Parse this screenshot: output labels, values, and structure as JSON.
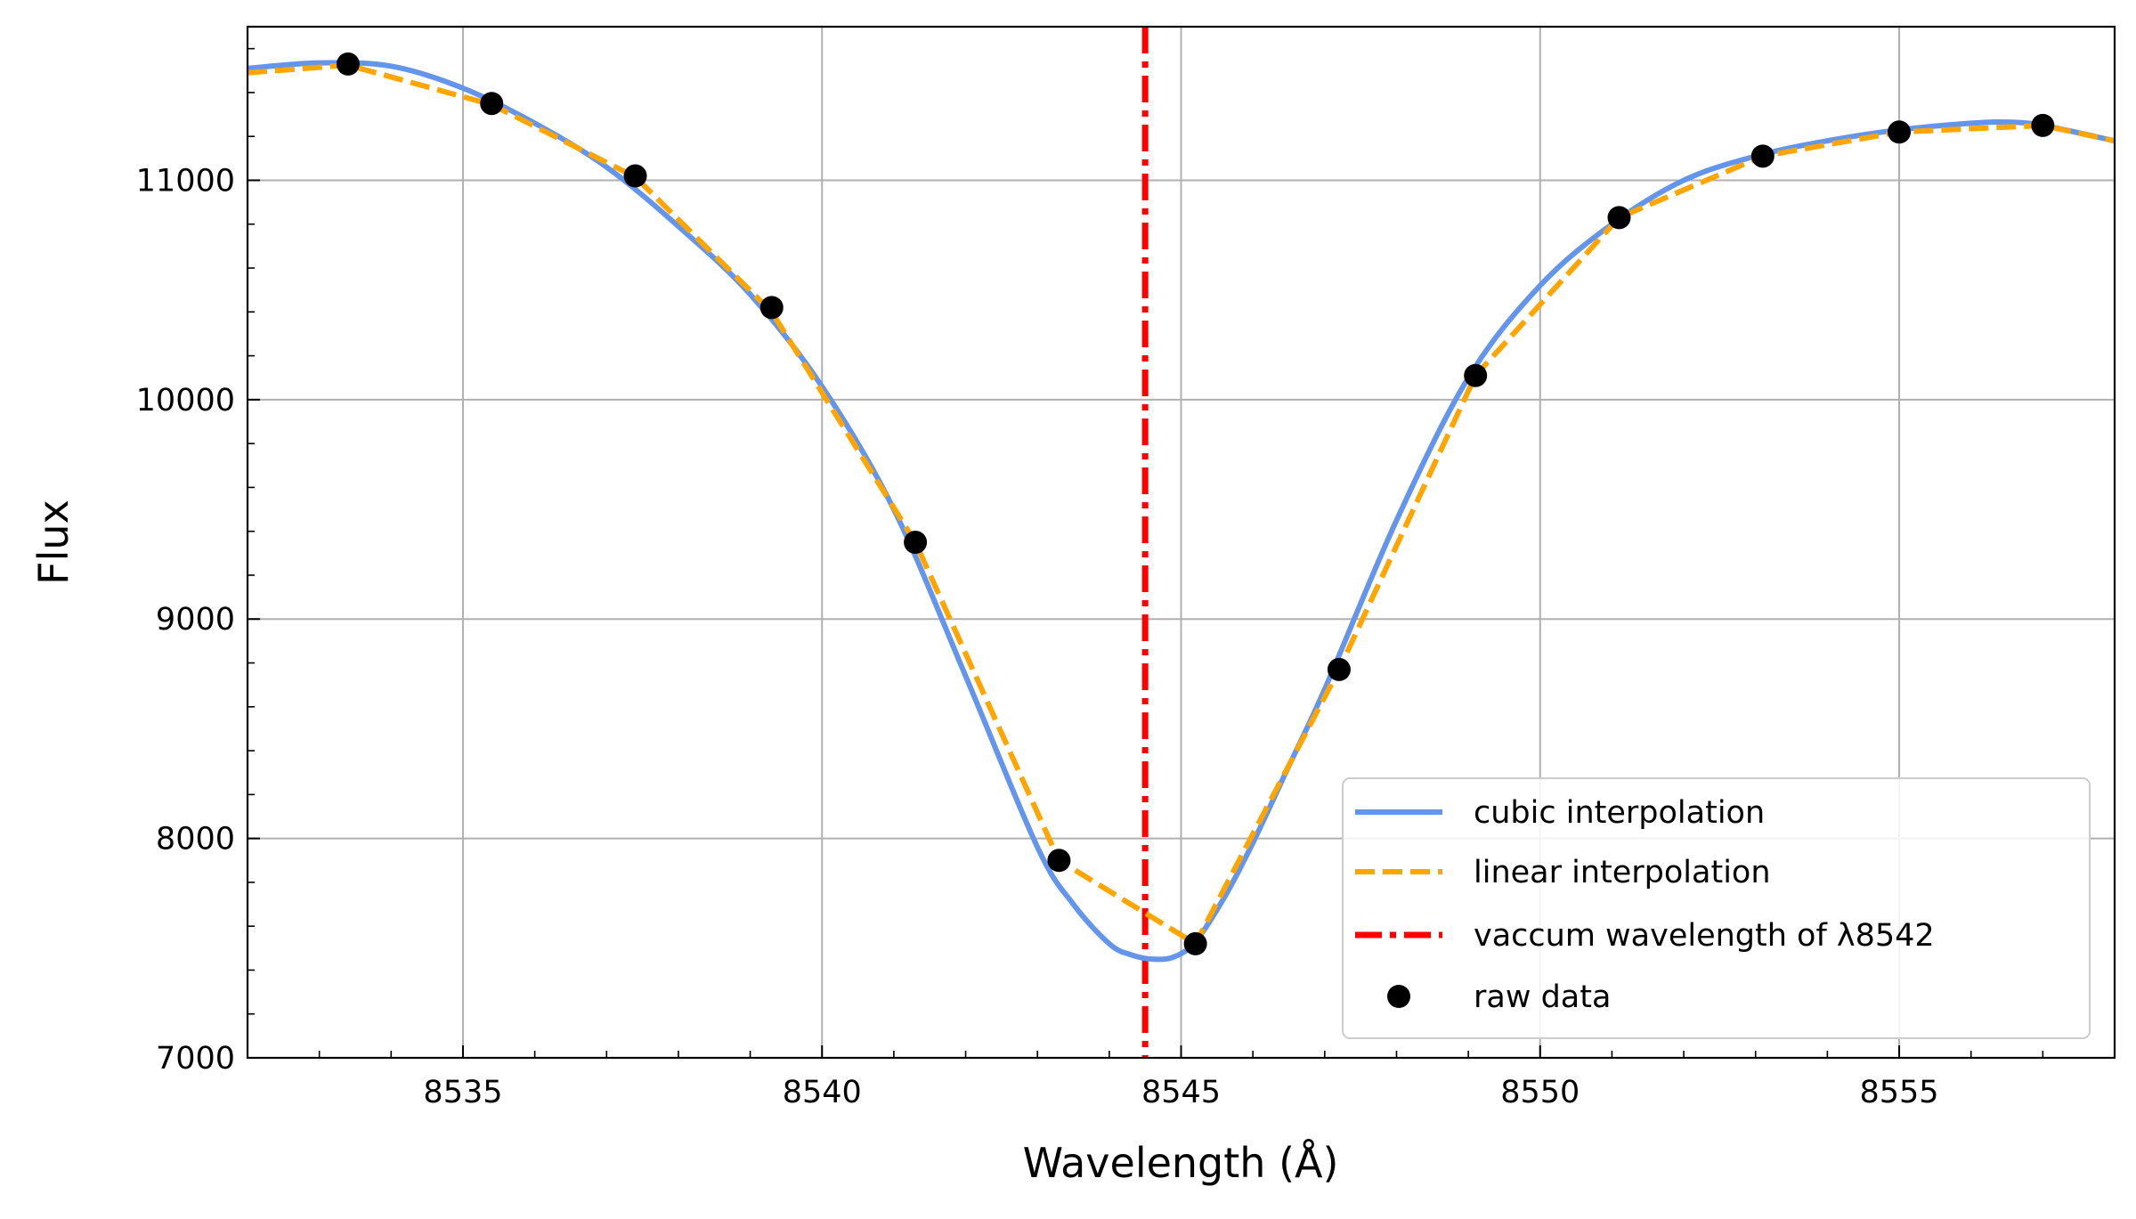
{
  "chart_data": {
    "type": "line",
    "xlabel": "Wavelength (Å)",
    "ylabel": "Flux",
    "xlim": [
      8532,
      8558
    ],
    "ylim": [
      7000,
      11700
    ],
    "x_ticks": [
      8535,
      8540,
      8545,
      8550,
      8555
    ],
    "y_ticks": [
      7000,
      8000,
      9000,
      10000,
      11000
    ],
    "x_tick_labels": [
      "8535",
      "8540",
      "8545",
      "8550",
      "8555"
    ],
    "y_tick_labels": [
      "7000",
      "8000",
      "9000",
      "10000",
      "11000"
    ],
    "x_minor_step": 1,
    "y_minor_step": 200,
    "grid": true,
    "legend_position": "lower-right",
    "colors": {
      "cubic": "#6495ed",
      "linear": "#ffa500",
      "vline": "#ff0000",
      "points": "#000000"
    },
    "raw_data": {
      "name": "raw data",
      "x": [
        8533.4,
        8535.4,
        8537.4,
        8539.3,
        8541.3,
        8543.3,
        8545.2,
        8547.2,
        8549.1,
        8551.1,
        8553.1,
        8555.0,
        8557.0
      ],
      "y": [
        11530,
        11350,
        11020,
        10420,
        9350,
        7900,
        7520,
        8770,
        10110,
        10830,
        11110,
        11220,
        11250
      ]
    },
    "series": [
      {
        "name": "cubic interpolation",
        "style": "solid",
        "x": [
          8532,
          8533,
          8534,
          8535,
          8536,
          8537,
          8538,
          8539,
          8540,
          8541,
          8542,
          8543,
          8543.5,
          8544,
          8544.3,
          8544.6,
          8544.9,
          8545.2,
          8545.6,
          8546,
          8546.5,
          8547,
          8548,
          8549,
          8550,
          8551,
          8552,
          8553,
          8554,
          8555,
          8556,
          8556.5,
          8557,
          8558
        ],
        "y": [
          11510,
          11535,
          11520,
          11420,
          11260,
          11060,
          10790,
          10480,
          10060,
          9500,
          8740,
          7960,
          7700,
          7520,
          7470,
          7450,
          7460,
          7530,
          7730,
          7980,
          8330,
          8680,
          9450,
          10100,
          10520,
          10800,
          11000,
          11110,
          11180,
          11230,
          11260,
          11265,
          11250,
          11180
        ]
      },
      {
        "name": "linear interpolation",
        "style": "dashed",
        "x": [
          8532,
          8533.4,
          8535.4,
          8537.4,
          8539.3,
          8541.3,
          8543.3,
          8545.2,
          8547.2,
          8549.1,
          8551.1,
          8553.1,
          8555.0,
          8557.0,
          8558
        ],
        "y": [
          11490,
          11525,
          11345,
          11015,
          10400,
          9350,
          7900,
          7520,
          8770,
          10110,
          10830,
          11110,
          11220,
          11250,
          11180
        ]
      }
    ],
    "vline": {
      "name": "vaccum wavelength of λ8542",
      "x": 8544.5,
      "style": "dashdot"
    },
    "legend_labels": [
      "cubic interpolation",
      "linear interpolation",
      "vaccum wavelength of λ8542",
      "raw data"
    ]
  }
}
